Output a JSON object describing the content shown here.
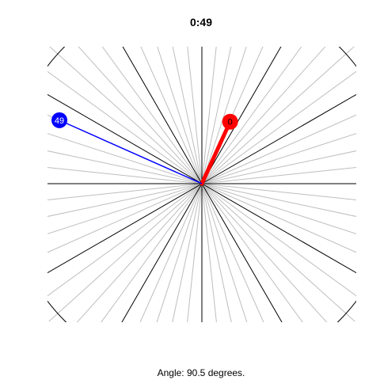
{
  "title": "0:49",
  "caption": {
    "prefix": "Angle:",
    "value": "90.5",
    "suffix": "degrees."
  },
  "clock": {
    "hour_hand": {
      "label": "0",
      "color": "#ff0000"
    },
    "minute_hand": {
      "label": "49",
      "color": "#0000ff"
    }
  },
  "colors": {
    "major_lines": "#000000",
    "minor_lines": "#bebebe",
    "rim": "#000000"
  }
}
